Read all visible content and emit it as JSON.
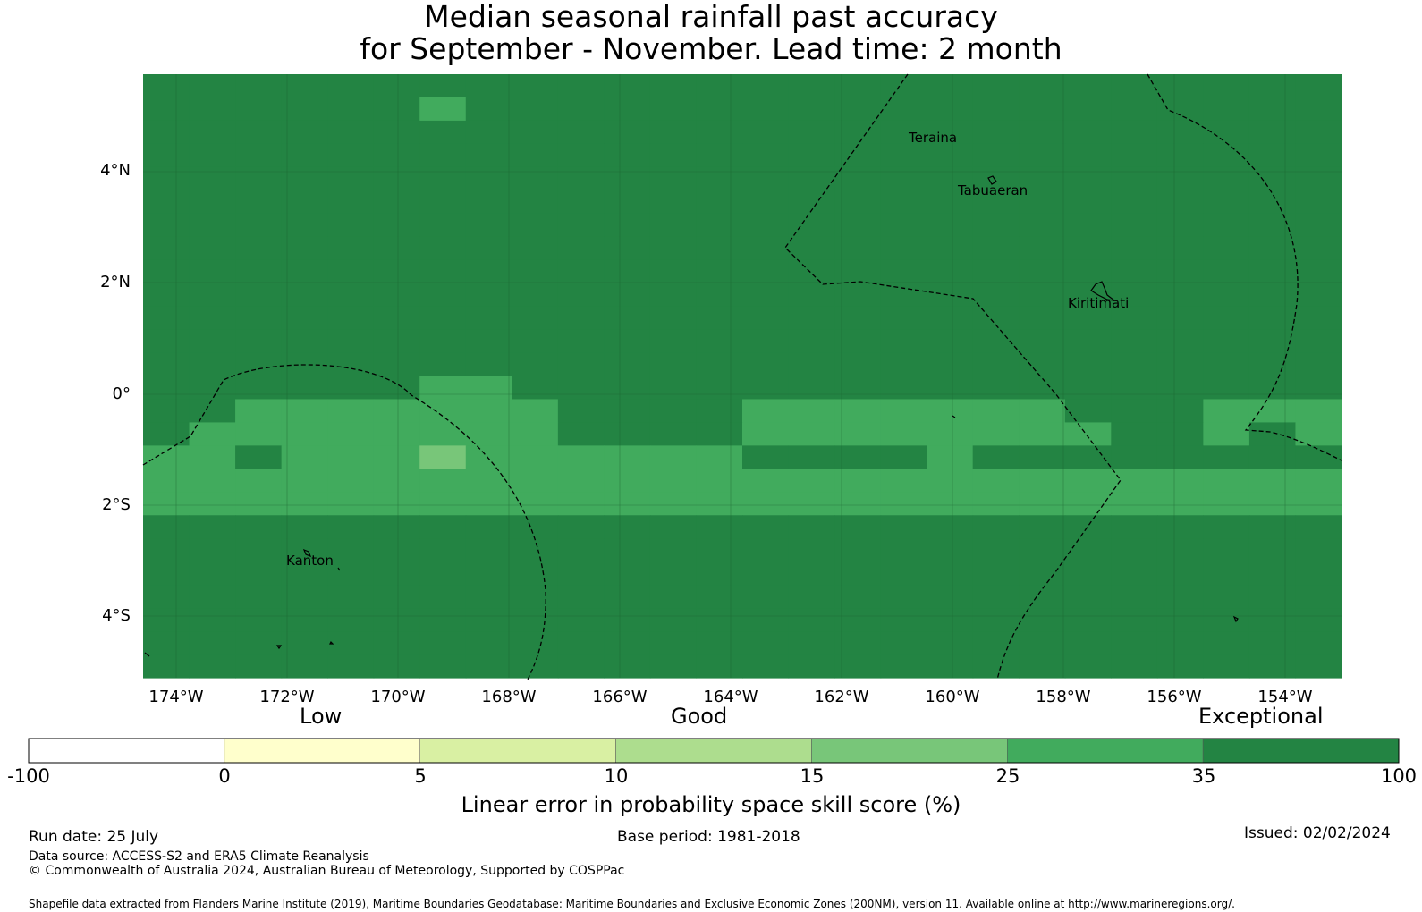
{
  "title": {
    "line1": "Median seasonal rainfall past accuracy",
    "line2": "for September - November. Lead time: 2 month"
  },
  "map": {
    "lat_ticks": [
      "4°N",
      "2°N",
      "0°",
      "2°S",
      "4°S"
    ],
    "lon_ticks": [
      "174°W",
      "172°W",
      "170°W",
      "168°W",
      "166°W",
      "164°W",
      "162°W",
      "160°W",
      "158°W",
      "156°W",
      "154°W"
    ],
    "places": [
      "Teraina",
      "Tabuaeran",
      "Kiritimati",
      "Kanton"
    ],
    "colors": {
      "c35_100": "#238443",
      "c25_35": "#41ab5d",
      "c15_25": "#78c679",
      "c10_15": "#addd8e",
      "c5_10": "#d9f0a3",
      "c0_5": "#ffffcc",
      "below0": "#ffffff"
    },
    "grid_rows": [
      "00000000000000000000000000",
      "00000010000000000000000000",
      "00000000000000000000000000",
      "00000000000000000000000000",
      "00000000000000000000000000",
      "00000000000000000000000000",
      "00000000000000000000000000",
      "00000000000000000000000000",
      "00000000000000000000000000",
      "00000000000000000000000000",
      "00000000000000000000000000",
      "00000000000000000000000000",
      "00000000000000000000000000",
      "00000011000000000000000000",
      "00111111100001111111000111",
      "01111111100001111111100101",
      "11011121111110000100000000",
      "11111111111111111111111111",
      "11111111111111111111111111",
      "00000000000000000000000000",
      "00000000000000000000000000",
      "00000000000000000000000000",
      "00000000000000000000000000",
      "00000000000000000000000000",
      "00000000000000000000000000",
      "00000000000000000000000000"
    ]
  },
  "colorbar": {
    "categories": [
      "Low",
      "Good",
      "Exceptional"
    ],
    "ticks": [
      "-100",
      "0",
      "5",
      "10",
      "15",
      "25",
      "35",
      "100"
    ],
    "colors": [
      "#ffffff",
      "#ffffcc",
      "#d9f0a3",
      "#addd8e",
      "#78c679",
      "#41ab5d",
      "#238443"
    ],
    "label": "Linear error in probability space skill score (%)"
  },
  "footer": {
    "run_date": "Run date: 25 July",
    "base_period": "Base period: 1981-2018",
    "issued": "Issued: 02/02/2024",
    "data_source": "Data source: ACCESS-S2 and ERA5 Climate Reanalysis",
    "copyright": "© Commonwealth of Australia 2024, Australian Bureau of Meteorology, Supported by COSPPac",
    "shapefile": "Shapefile data extracted from Flanders Marine Institute (2019), Maritime Boundaries Geodatabase: Maritime Boundaries and Exclusive Economic Zones (200NM), version 11. Available online at http://www.marineregions.org/."
  }
}
